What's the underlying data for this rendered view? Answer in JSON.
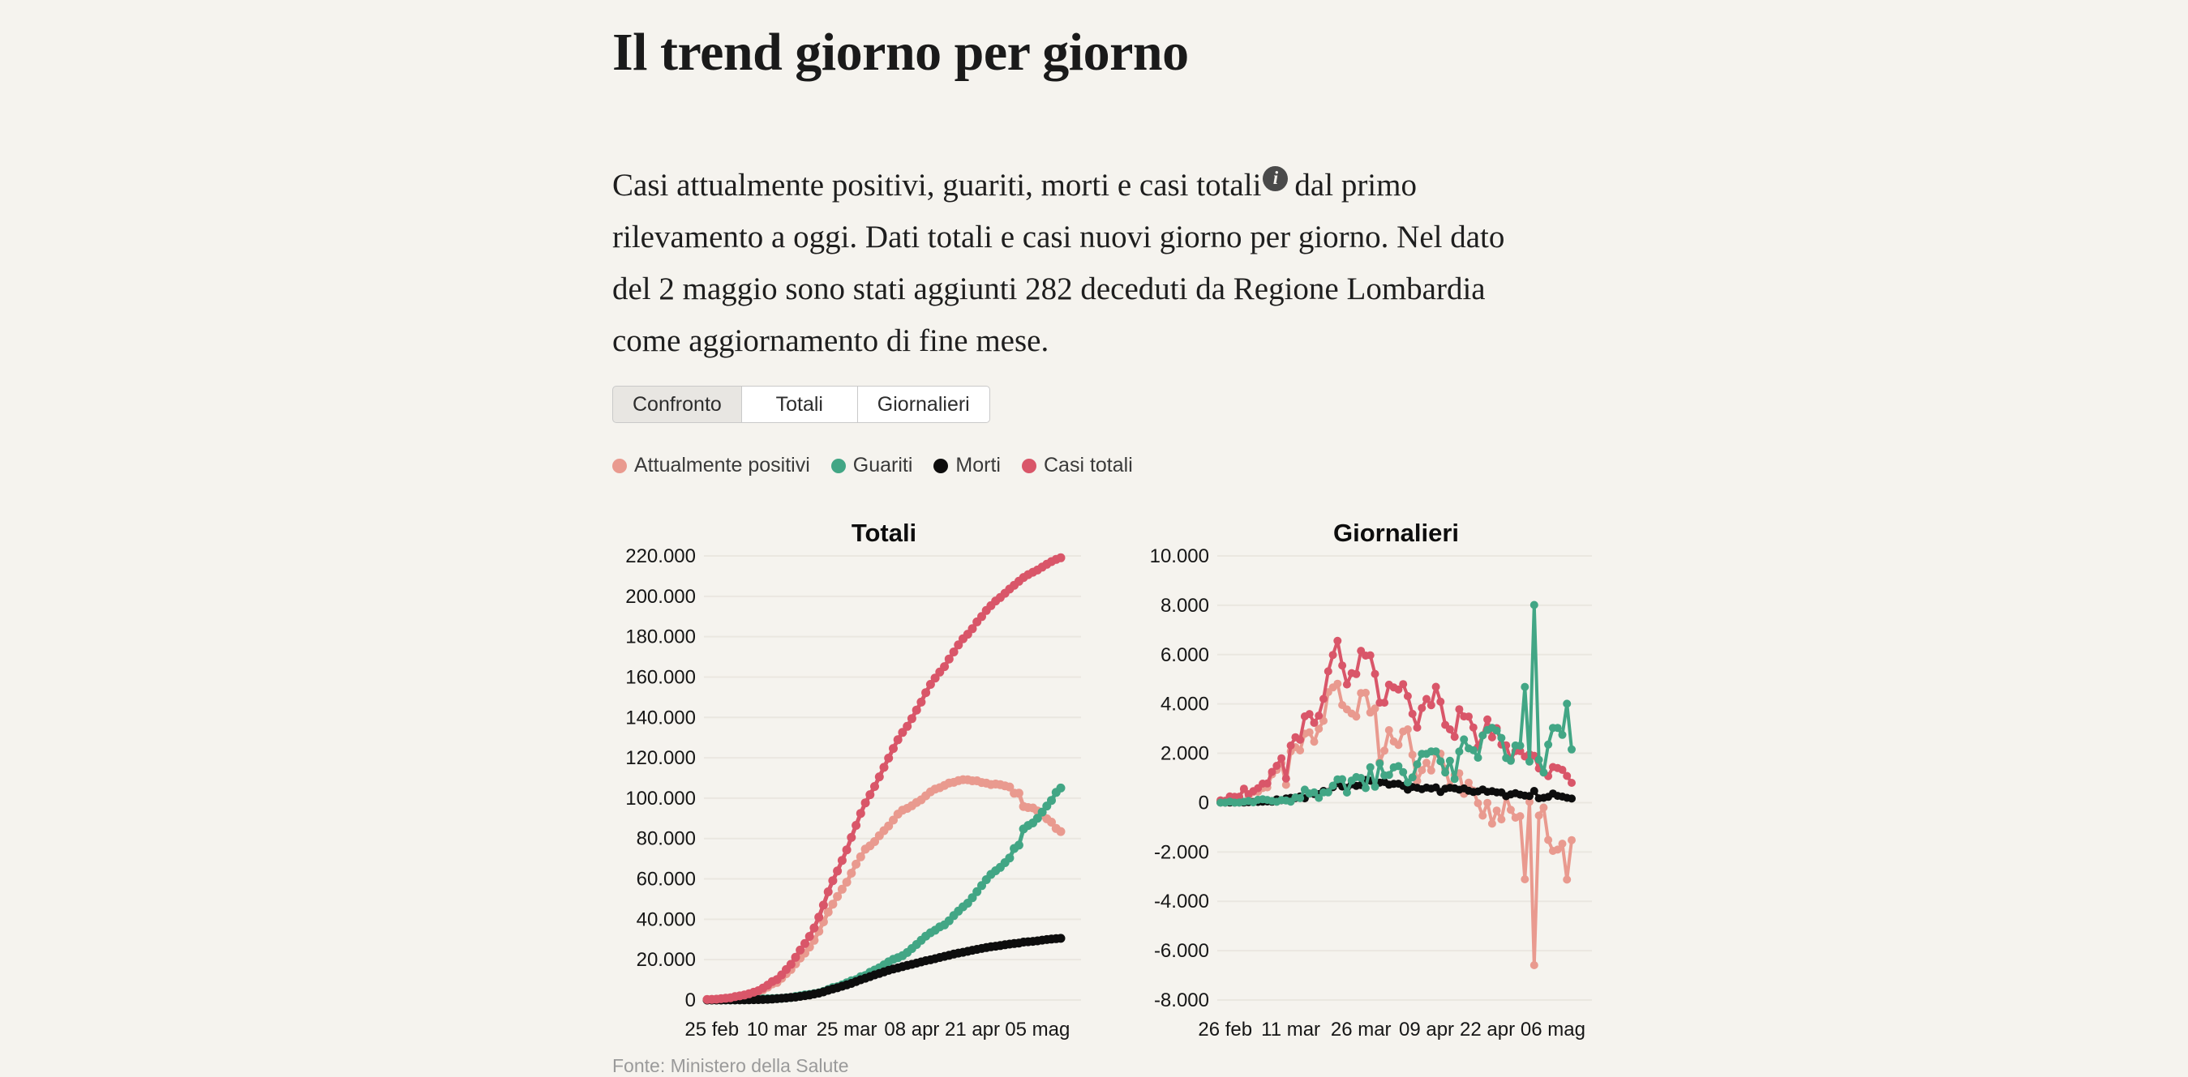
{
  "page": {
    "background": "#f5f3ee"
  },
  "header": {
    "title": "Il trend giorno per giorno"
  },
  "intro": {
    "text_before_icon": "Casi attualmente positivi, guariti, morti e casi totali",
    "info_icon": "i",
    "text_after_icon": "dal primo rilevamento a oggi. Dati totali e casi nuovi giorno per giorno. Nel dato del 2 maggio sono stati aggiunti 282 deceduti da Regione Lombardia come aggiornamento di fine mese."
  },
  "tabs": [
    {
      "label": "Confronto",
      "active": true
    },
    {
      "label": "Totali",
      "active": false
    },
    {
      "label": "Giornalieri",
      "active": false
    }
  ],
  "colors": {
    "attualmente_positivi": "#e99a8f",
    "guariti": "#42a685",
    "morti": "#0d0d0d",
    "casi_totali": "#d95669",
    "grid": "#eae7e0"
  },
  "legend": [
    {
      "label": "Attualmente positivi",
      "key": "attualmente_positivi"
    },
    {
      "label": "Guariti",
      "key": "guariti"
    },
    {
      "label": "Morti",
      "key": "morti"
    },
    {
      "label": "Casi totali",
      "key": "casi_totali"
    }
  ],
  "source": "Fonte: Ministero della Salute",
  "chart_data": [
    {
      "type": "line",
      "title": "Totali",
      "ylim": [
        0,
        220000
      ],
      "y_tick_values": [
        0,
        20000,
        40000,
        60000,
        80000,
        100000,
        120000,
        140000,
        160000,
        180000,
        200000,
        220000
      ],
      "y_tick_labels": [
        "0",
        "20.000",
        "40.000",
        "60.000",
        "80.000",
        "100.000",
        "120.000",
        "140.000",
        "160.000",
        "180.000",
        "200.000",
        "220.000"
      ],
      "x_tick_indices": [
        1,
        15,
        30,
        44,
        57,
        71
      ],
      "x_tick_labels": [
        "25 feb",
        "10 mar",
        "25 mar",
        "08 apr",
        "21 apr",
        "05 mag"
      ],
      "grid": true,
      "legend_position": "top",
      "series": [
        {
          "name": "Attualmente positivi",
          "key": "attualmente_positivi",
          "values": [
            221,
            310,
            384,
            587,
            820,
            1047,
            1575,
            1833,
            2261,
            2704,
            3294,
            3914,
            5059,
            6385,
            7983,
            8704,
            10780,
            13029,
            15145,
            17940,
            20793,
            23263,
            26252,
            29569,
            34049,
            38719,
            43540,
            47497,
            51277,
            54889,
            58380,
            62822,
            67273,
            70924,
            74739,
            76387,
            78494,
            81431,
            83908,
            86247,
            89133,
            92105,
            94046,
            94926,
            96241,
            97856,
            99158,
            101154,
            103138,
            104501,
            105176,
            106303,
            107492,
            107847,
            108656,
            109142,
            109122,
            108594,
            108584,
            107733,
            107412,
            106732,
            106988,
            106698,
            106090,
            105542,
            102436,
            102467,
            95879,
            95354,
            95155,
            93642,
            91686,
            89782,
            88119,
            85000,
            83482
          ]
        },
        {
          "name": "Guariti",
          "key": "guariti",
          "values": [
            1,
            1,
            3,
            45,
            46,
            51,
            84,
            150,
            161,
            277,
            415,
            524,
            590,
            623,
            725,
            813,
            854,
            1067,
            1248,
            1775,
            2144,
            2558,
            2750,
            3165,
            3580,
            4269,
            5212,
            6164,
            6572,
            7466,
            8502,
            9501,
            10090,
            11524,
            12170,
            13760,
            14869,
            15987,
            17418,
            18898,
            20136,
            20955,
            21977,
            23532,
            25511,
            27490,
            29569,
            31648,
            33325,
            34549,
            36244,
            37206,
            39278,
            41841,
            44041,
            46169,
            47991,
            50714,
            53657,
            56690,
            59612,
            62234,
            64042,
            65738,
            68055,
            70366,
            75059,
            76724,
            84738,
            86478,
            87703,
            90055,
            93086,
            96117,
            98864,
            102872,
            105027
          ]
        },
        {
          "name": "Morti",
          "key": "morti",
          "values": [
            7,
            11,
            13,
            18,
            22,
            30,
            35,
            53,
            80,
            108,
            149,
            198,
            234,
            367,
            464,
            632,
            828,
            1017,
            1267,
            1442,
            1810,
            2159,
            2504,
            2979,
            3406,
            4033,
            4826,
            5477,
            6078,
            6821,
            7504,
            8216,
            9135,
            10024,
            10780,
            11592,
            12429,
            13156,
            13916,
            14682,
            15363,
            15888,
            16524,
            17128,
            17670,
            18280,
            18850,
            19469,
            19900,
            20466,
            21068,
            21646,
            22171,
            22746,
            23228,
            23661,
            24115,
            24649,
            25086,
            25550,
            25970,
            26385,
            26645,
            26978,
            27360,
            27683,
            27968,
            28237,
            28711,
            28885,
            29080,
            29316,
            29685,
            29959,
            30202,
            30396,
            30561
          ]
        },
        {
          "name": "Casi totali",
          "key": "casi_totali",
          "values": [
            229,
            322,
            400,
            650,
            888,
            1128,
            1694,
            2036,
            2502,
            3089,
            3858,
            4636,
            5883,
            7375,
            9172,
            10149,
            12462,
            15113,
            17660,
            21157,
            24747,
            27980,
            31506,
            35713,
            41035,
            47021,
            53578,
            59138,
            63927,
            69176,
            74386,
            80539,
            86498,
            92472,
            97689,
            101739,
            105792,
            110574,
            115242,
            119827,
            124632,
            128948,
            132547,
            135586,
            139422,
            143626,
            147577,
            152271,
            156363,
            159516,
            162488,
            165155,
            168941,
            172434,
            175925,
            178972,
            181228,
            183957,
            187327,
            189973,
            192994,
            195351,
            197675,
            199414,
            201505,
            203591,
            205463,
            207428,
            209328,
            210717,
            211938,
            213013,
            214457,
            215858,
            217185,
            218268,
            219070
          ]
        }
      ]
    },
    {
      "type": "line",
      "title": "Giornalieri",
      "ylim": [
        -8000,
        10000
      ],
      "y_tick_values": [
        -8000,
        -6000,
        -4000,
        -2000,
        0,
        2000,
        4000,
        6000,
        8000,
        10000
      ],
      "y_tick_labels": [
        "-8.000",
        "-6.000",
        "-4.000",
        "-2.000",
        "0",
        "2.000",
        "4.000",
        "6.000",
        "8.000",
        "10.000"
      ],
      "x_tick_indices": [
        1,
        15,
        30,
        44,
        57,
        71
      ],
      "x_tick_labels": [
        "26 feb",
        "11 mar",
        "26 mar",
        "09 apr",
        "22 apr",
        "06 mag"
      ],
      "grid": true,
      "legend_position": "top",
      "series": [
        {
          "name": "Attualmente positivi",
          "key": "attualmente_positivi",
          "values": [
            89,
            74,
            203,
            233,
            227,
            528,
            258,
            428,
            443,
            590,
            620,
            1145,
            1326,
            1598,
            721,
            2076,
            2249,
            2116,
            2795,
            2853,
            2470,
            2989,
            3317,
            4480,
            4670,
            4821,
            3957,
            3780,
            3612,
            3491,
            4442,
            4451,
            3651,
            3815,
            1648,
            2107,
            2937,
            2477,
            2339,
            2886,
            2972,
            1941,
            880,
            1315,
            1615,
            1302,
            1996,
            1984,
            1363,
            675,
            1127,
            1189,
            355,
            809,
            486,
            -20,
            -528,
            -10,
            -851,
            -321,
            -680,
            256,
            -290,
            -608,
            -548,
            -3106,
            31,
            -6588,
            -525,
            -199,
            -1513,
            -1956,
            -1904,
            -1663,
            -3119,
            -1518
          ]
        },
        {
          "name": "Morti",
          "key": "morti",
          "values": [
            4,
            2,
            5,
            4,
            8,
            5,
            18,
            27,
            28,
            41,
            49,
            36,
            133,
            97,
            168,
            196,
            189,
            250,
            175,
            368,
            349,
            345,
            475,
            427,
            627,
            793,
            651,
            601,
            743,
            683,
            712,
            919,
            889,
            756,
            812,
            837,
            727,
            760,
            766,
            681,
            525,
            636,
            604,
            542,
            610,
            570,
            619,
            431,
            566,
            602,
            578,
            525,
            575,
            482,
            433,
            454,
            534,
            437,
            464,
            420,
            415,
            260,
            333,
            382,
            323,
            285,
            269,
            474,
            174,
            195,
            236,
            369,
            274,
            243,
            194,
            165
          ]
        },
        {
          "name": "Casi totali",
          "key": "casi_totali",
          "values": [
            93,
            78,
            250,
            238,
            240,
            566,
            342,
            466,
            587,
            769,
            778,
            1247,
            1492,
            1797,
            977,
            2313,
            2651,
            2547,
            3497,
            3590,
            3233,
            3526,
            4207,
            5322,
            5986,
            6557,
            5560,
            4789,
            5249,
            5210,
            6153,
            5959,
            5974,
            5217,
            4050,
            4053,
            4782,
            4668,
            4585,
            4805,
            4316,
            3599,
            3039,
            3836,
            4204,
            3951,
            4694,
            4092,
            3153,
            2972,
            2667,
            3786,
            3493,
            3491,
            3047,
            2256,
            2729,
            3370,
            2646,
            3021,
            2357,
            2324,
            1739,
            2091,
            2086,
            1872,
            1965,
            1900,
            1389,
            1221,
            1075,
            1444,
            1401,
            1327,
            1083,
            802
          ]
        },
        {
          "name": "Guariti",
          "key": "guariti",
          "values": [
            0,
            2,
            42,
            1,
            5,
            33,
            66,
            11,
            116,
            138,
            109,
            66,
            33,
            102,
            88,
            41,
            213,
            181,
            527,
            369,
            414,
            192,
            415,
            415,
            689,
            943,
            952,
            408,
            894,
            1036,
            999,
            589,
            1434,
            646,
            1590,
            1109,
            1118,
            1431,
            1480,
            1238,
            819,
            1022,
            1555,
            1979,
            1979,
            2079,
            2079,
            1677,
            1224,
            1695,
            962,
            2072,
            2563,
            2200,
            2128,
            1822,
            2723,
            2943,
            3033,
            2922,
            2622,
            1808,
            1696,
            2317,
            2311,
            4693,
            1665,
            8014,
            1740,
            1225,
            2352,
            3031,
            3031,
            2747,
            4008,
            2155
          ]
        }
      ]
    }
  ]
}
